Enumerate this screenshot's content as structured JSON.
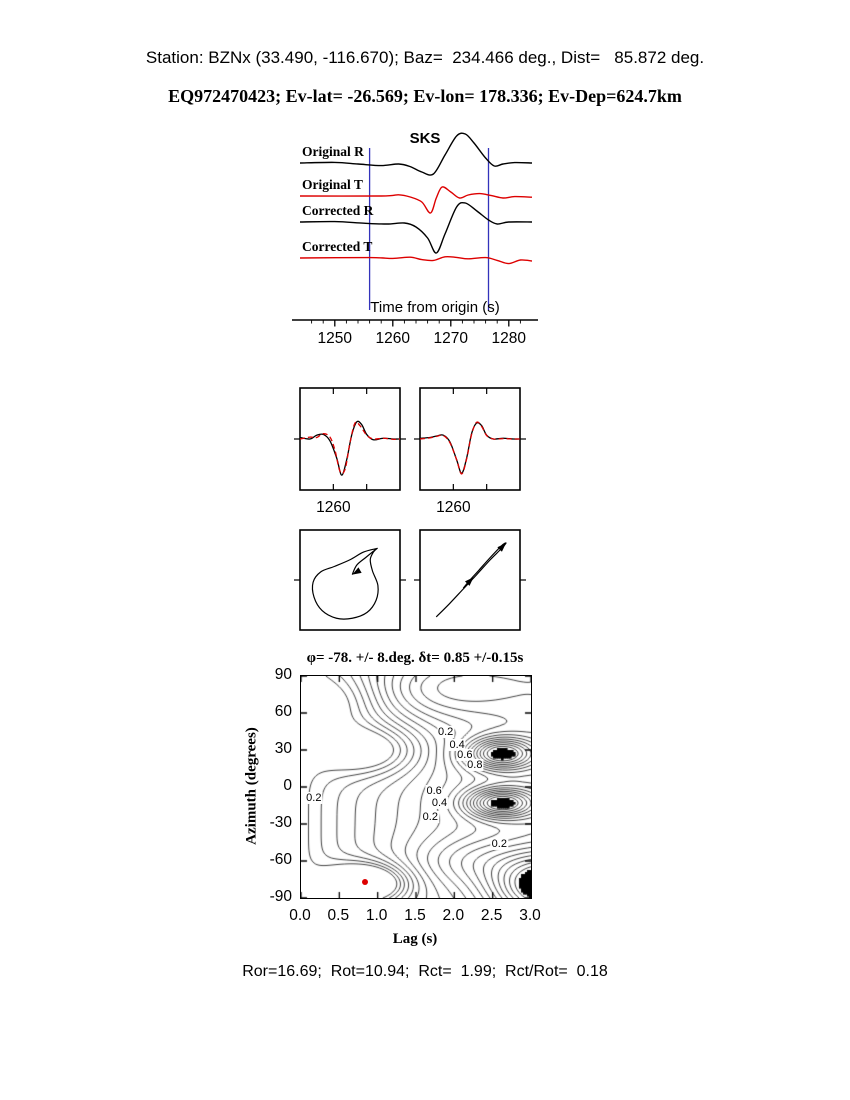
{
  "page": {
    "title_line1": "Station: BZNx (33.490, -116.670); Baz=  234.466 deg., Dist=   85.872 deg.",
    "title_line2": "EQ972470423; Ev-lat= -26.569; Ev-lon= 178.336; Ev-Dep=624.7km",
    "footer": "Ror=16.69;  Rot=10.94;  Rct=  1.99;  Rct/Rot=  0.18"
  },
  "colors": {
    "background": "#ffffff",
    "trace_black": "#000000",
    "trace_red": "#dd0000",
    "window_blue": "#3333bb",
    "marker_red": "#dd0000",
    "text": "#000000"
  },
  "chart_data": [
    {
      "id": "waveforms",
      "type": "line",
      "title": "SKS",
      "xlabel": "Time from origin (s)",
      "xlim": [
        1244,
        1284
      ],
      "xticks": [
        1250,
        1260,
        1270,
        1280
      ],
      "xtick_labels": [
        "1250",
        "1260",
        "1270",
        "1280"
      ],
      "window_lines_x": [
        1256,
        1276.5
      ],
      "series": [
        {
          "name": "Original R",
          "color": "black",
          "points": [
            [
              1244,
              0
            ],
            [
              1250,
              0.03
            ],
            [
              1254,
              -0.05
            ],
            [
              1258,
              -0.13
            ],
            [
              1261,
              -0.05
            ],
            [
              1263,
              -0.18
            ],
            [
              1265,
              -0.45
            ],
            [
              1267,
              -0.55
            ],
            [
              1269,
              0.4
            ],
            [
              1271,
              1.35
            ],
            [
              1272.5,
              1.45
            ],
            [
              1274,
              1.0
            ],
            [
              1276,
              0.25
            ],
            [
              1277.5,
              -0.15
            ],
            [
              1279,
              -0.05
            ],
            [
              1281,
              0.02
            ],
            [
              1284,
              0
            ]
          ]
        },
        {
          "name": "Original T",
          "color": "red",
          "points": [
            [
              1244,
              0
            ],
            [
              1258,
              0
            ],
            [
              1261,
              0.06
            ],
            [
              1263,
              -0.05
            ],
            [
              1265,
              -0.3
            ],
            [
              1266.5,
              -0.85
            ],
            [
              1267.5,
              -0.1
            ],
            [
              1268.5,
              0.45
            ],
            [
              1270,
              0.2
            ],
            [
              1271.5,
              -0.1
            ],
            [
              1273,
              0.05
            ],
            [
              1275,
              0.12
            ],
            [
              1277,
              0.02
            ],
            [
              1279,
              -0.1
            ],
            [
              1281,
              -0.03
            ],
            [
              1284,
              -0.06
            ]
          ]
        },
        {
          "name": "Corrected R",
          "color": "black",
          "points": [
            [
              1244,
              0
            ],
            [
              1250,
              0.02
            ],
            [
              1255,
              -0.06
            ],
            [
              1259,
              -0.1
            ],
            [
              1262,
              -0.05
            ],
            [
              1264,
              -0.25
            ],
            [
              1266,
              -0.8
            ],
            [
              1267.5,
              -1.55
            ],
            [
              1269,
              -0.6
            ],
            [
              1271,
              0.75
            ],
            [
              1272.5,
              0.95
            ],
            [
              1274.5,
              0.55
            ],
            [
              1276.5,
              0.1
            ],
            [
              1278,
              -0.1
            ],
            [
              1280,
              0
            ],
            [
              1284,
              0
            ]
          ]
        },
        {
          "name": "Corrected T",
          "color": "red",
          "points": [
            [
              1244,
              0
            ],
            [
              1256,
              0.02
            ],
            [
              1260,
              -0.02
            ],
            [
              1263,
              0.04
            ],
            [
              1265,
              -0.08
            ],
            [
              1267,
              -0.12
            ],
            [
              1269,
              0.06
            ],
            [
              1271,
              0.03
            ],
            [
              1273,
              -0.04
            ],
            [
              1276,
              0.02
            ],
            [
              1278,
              -0.12
            ],
            [
              1280,
              -0.28
            ],
            [
              1282,
              -0.1
            ],
            [
              1284,
              -0.15
            ]
          ]
        }
      ]
    },
    {
      "id": "pulse-comparison",
      "type": "line",
      "xlim": [
        1250,
        1280
      ],
      "xticks": [
        1260,
        1270
      ],
      "labeled_tick": 1260,
      "labeled_tick_text": "1260",
      "panels": [
        {
          "name": "fast-slow-before-correction",
          "series": [
            {
              "name": "fast",
              "color": "black",
              "dashed": false,
              "points": [
                [
                  1250,
                  0.04
                ],
                [
                  1253,
                  0.0
                ],
                [
                  1255,
                  0.1
                ],
                [
                  1257,
                  0.12
                ],
                [
                  1259,
                  -0.05
                ],
                [
                  1261,
                  -0.5
                ],
                [
                  1262.5,
                  -0.95
                ],
                [
                  1264,
                  -0.55
                ],
                [
                  1265.5,
                  0.1
                ],
                [
                  1267,
                  0.45
                ],
                [
                  1268.5,
                  0.38
                ],
                [
                  1270,
                  0.12
                ],
                [
                  1272,
                  -0.02
                ],
                [
                  1275,
                  0.02
                ],
                [
                  1278,
                  0
                ],
                [
                  1280,
                  0
                ]
              ]
            },
            {
              "name": "slow",
              "color": "red",
              "dashed": true,
              "points": [
                [
                  1250,
                  0.0
                ],
                [
                  1253,
                  0.05
                ],
                [
                  1255,
                  0.04
                ],
                [
                  1257,
                  0.14
                ],
                [
                  1259,
                  0.05
                ],
                [
                  1260.5,
                  -0.3
                ],
                [
                  1262,
                  -0.85
                ],
                [
                  1263.5,
                  -0.8
                ],
                [
                  1265,
                  -0.1
                ],
                [
                  1266.5,
                  0.42
                ],
                [
                  1268,
                  0.35
                ],
                [
                  1270,
                  0.1
                ],
                [
                  1272,
                  0
                ],
                [
                  1275,
                  0.02
                ],
                [
                  1278,
                  -0.01
                ],
                [
                  1280,
                  0
                ]
              ]
            }
          ]
        },
        {
          "name": "fast-slow-after-correction",
          "series": [
            {
              "name": "fast",
              "color": "black",
              "dashed": false,
              "points": [
                [
                  1250,
                  0.02
                ],
                [
                  1253,
                  0.04
                ],
                [
                  1255,
                  0.08
                ],
                [
                  1257,
                  0.1
                ],
                [
                  1259,
                  -0.08
                ],
                [
                  1261,
                  -0.55
                ],
                [
                  1262.5,
                  -0.9
                ],
                [
                  1264,
                  -0.5
                ],
                [
                  1265.5,
                  0.15
                ],
                [
                  1267,
                  0.42
                ],
                [
                  1268.5,
                  0.35
                ],
                [
                  1270,
                  0.1
                ],
                [
                  1272,
                  0
                ],
                [
                  1275,
                  0.02
                ],
                [
                  1278,
                  0
                ],
                [
                  1280,
                  0
                ]
              ]
            },
            {
              "name": "slow",
              "color": "red",
              "dashed": true,
              "points": [
                [
                  1250,
                  0.0
                ],
                [
                  1253,
                  0.03
                ],
                [
                  1255,
                  0.07
                ],
                [
                  1257,
                  0.09
                ],
                [
                  1259,
                  -0.1
                ],
                [
                  1261,
                  -0.55
                ],
                [
                  1262.5,
                  -0.92
                ],
                [
                  1264,
                  -0.52
                ],
                [
                  1265.5,
                  0.13
                ],
                [
                  1267,
                  0.44
                ],
                [
                  1268.5,
                  0.33
                ],
                [
                  1270,
                  0.09
                ],
                [
                  1272,
                  0
                ],
                [
                  1275,
                  0.01
                ],
                [
                  1278,
                  0
                ],
                [
                  1280,
                  0
                ]
              ]
            }
          ]
        }
      ]
    },
    {
      "id": "particle-motion",
      "type": "line",
      "panels": [
        {
          "name": "original-particle-motion",
          "loop": [
            [
              0.6,
              0.7
            ],
            [
              0.3,
              0.62
            ],
            [
              0.0,
              0.45
            ],
            [
              -0.35,
              0.3
            ],
            [
              -0.65,
              0.18
            ],
            [
              -0.82,
              -0.05
            ],
            [
              -0.8,
              -0.38
            ],
            [
              -0.62,
              -0.68
            ],
            [
              -0.3,
              -0.85
            ],
            [
              0.05,
              -0.85
            ],
            [
              0.38,
              -0.72
            ],
            [
              0.58,
              -0.45
            ],
            [
              0.62,
              -0.12
            ],
            [
              0.5,
              0.2
            ],
            [
              0.45,
              0.45
            ],
            [
              0.52,
              0.62
            ],
            [
              0.6,
              0.7
            ],
            [
              0.35,
              0.5
            ],
            [
              0.15,
              0.33
            ],
            [
              0.05,
              0.12
            ]
          ],
          "arrows": [
            {
              "x": 0.05,
              "y": 0.12,
              "angle": 210
            }
          ]
        },
        {
          "name": "corrected-particle-motion",
          "loop": [
            [
              -0.75,
              -0.82
            ],
            [
              -0.45,
              -0.52
            ],
            [
              -0.15,
              -0.2
            ],
            [
              0.15,
              0.12
            ],
            [
              0.45,
              0.45
            ],
            [
              0.68,
              0.68
            ],
            [
              0.8,
              0.82
            ],
            [
              0.7,
              0.76
            ],
            [
              0.45,
              0.5
            ],
            [
              0.2,
              0.22
            ],
            [
              0.0,
              0.0
            ],
            [
              -0.15,
              -0.18
            ]
          ],
          "arrows": [
            {
              "x": 0.8,
              "y": 0.82,
              "angle": 45
            },
            {
              "x": 0.08,
              "y": 0.06,
              "angle": 45
            }
          ]
        }
      ]
    },
    {
      "id": "error-surface",
      "type": "heatmap",
      "title": "φ= -78. +/- 8.deg. δt= 0.85 +/-0.15s",
      "xlabel": "Lag (s)",
      "ylabel": "Azimuth (degrees)",
      "xlim": [
        0,
        3
      ],
      "ylim": [
        -90,
        90
      ],
      "xticks": [
        0,
        0.5,
        1,
        1.5,
        2,
        2.5,
        3
      ],
      "xtick_labels": [
        "0.0",
        "0.5",
        "1.0",
        "1.5",
        "2.0",
        "2.5",
        "3.0"
      ],
      "yticks": [
        90,
        60,
        30,
        0,
        -30,
        -60,
        -90
      ],
      "ytick_labels": [
        "90",
        "60",
        "30",
        "0",
        "-30",
        "-60",
        "-90"
      ],
      "contour_levels_start": 0.05,
      "contour_levels_step": 0.05,
      "contour_levels_count": 19,
      "best_fit": {
        "lag": 0.85,
        "azimuth": -78
      },
      "surface_model": {
        "base_weight": 0.55,
        "base_power": 0.7,
        "bumps": [
          {
            "t": 2.6,
            "a": 27,
            "st": 0.45,
            "sa": 13,
            "w": 0.55
          },
          {
            "t": 2.6,
            "a": -13,
            "st": 0.45,
            "sa": 12,
            "w": 0.55
          },
          {
            "t": 0.85,
            "a": -78,
            "st": 0.5,
            "sa": 15,
            "w": -0.5
          },
          {
            "t": 0.9,
            "a": 30,
            "st": 0.65,
            "sa": 20,
            "w": -0.3
          },
          {
            "t": 1.8,
            "a": 80,
            "st": 1.0,
            "sa": 25,
            "w": 0.22
          },
          {
            "t": 0.5,
            "a": 70,
            "st": 0.6,
            "sa": 25,
            "w": -0.18
          },
          {
            "t": 2.2,
            "a": -60,
            "st": 0.8,
            "sa": 20,
            "w": 0.15
          },
          {
            "t": 3.2,
            "a": -80,
            "st": 0.7,
            "sa": 25,
            "w": 0.55
          }
        ],
        "fill_threshold": 0.97
      },
      "contour_labels": [
        {
          "text": "0.2",
          "t": 1.9,
          "a": 44
        },
        {
          "text": "0.4",
          "t": 2.05,
          "a": 33
        },
        {
          "text": "0.6",
          "t": 2.15,
          "a": 25
        },
        {
          "text": "0.8",
          "t": 2.28,
          "a": 17
        },
        {
          "text": "0.6",
          "t": 1.75,
          "a": -4
        },
        {
          "text": "0.4",
          "t": 1.82,
          "a": -14
        },
        {
          "text": "0.2",
          "t": 1.7,
          "a": -25
        },
        {
          "text": "0.2",
          "t": 2.6,
          "a": -47
        },
        {
          "text": "0.2",
          "t": 0.18,
          "a": -10
        }
      ]
    }
  ]
}
